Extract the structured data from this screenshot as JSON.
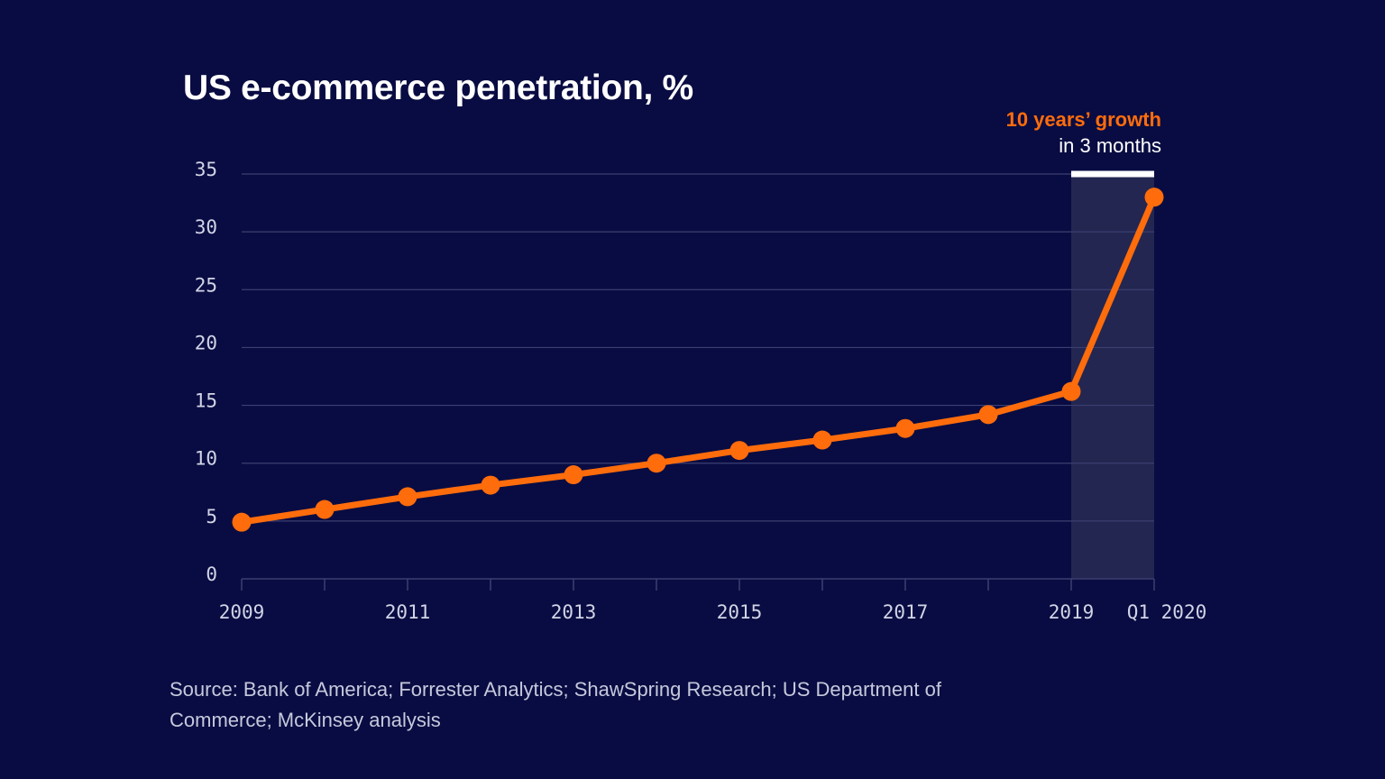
{
  "colors": {
    "background": "#090c42",
    "line": "#ff6c0c",
    "grid": "#3b3f70",
    "highlight_band": "#232650",
    "bracket": "#ffffff"
  },
  "annotation": {
    "highlight": "10 years’ growth",
    "text": "in 3 months"
  },
  "source": "Source: Bank of America; Forrester Analytics; ShawSpring Research; US Department of Commerce; McKinsey analysis",
  "chart_data": {
    "type": "line",
    "title": "US e-commerce penetration, %",
    "xlabel": "",
    "ylabel": "",
    "ylim": [
      0,
      35
    ],
    "yticks": [
      0,
      5,
      10,
      15,
      20,
      25,
      30,
      35
    ],
    "grid": true,
    "x": [
      2009,
      2010,
      2011,
      2012,
      2013,
      2014,
      2015,
      2016,
      2017,
      2018,
      2019,
      2020
    ],
    "x_tick_labels": [
      {
        "x": 2009,
        "label": "2009"
      },
      {
        "x": 2011,
        "label": "2011"
      },
      {
        "x": 2013,
        "label": "2013"
      },
      {
        "x": 2015,
        "label": "2015"
      },
      {
        "x": 2017,
        "label": "2017"
      },
      {
        "x": 2019,
        "label": "2019"
      },
      {
        "x": 2020,
        "label": "Q1 2020"
      }
    ],
    "series": [
      {
        "name": "US e-commerce penetration",
        "values": [
          4.9,
          6.0,
          7.1,
          8.1,
          9.0,
          10.0,
          11.1,
          12.0,
          13.0,
          14.2,
          16.2,
          33.0
        ]
      }
    ],
    "highlight_range": [
      2019,
      2020
    ]
  }
}
